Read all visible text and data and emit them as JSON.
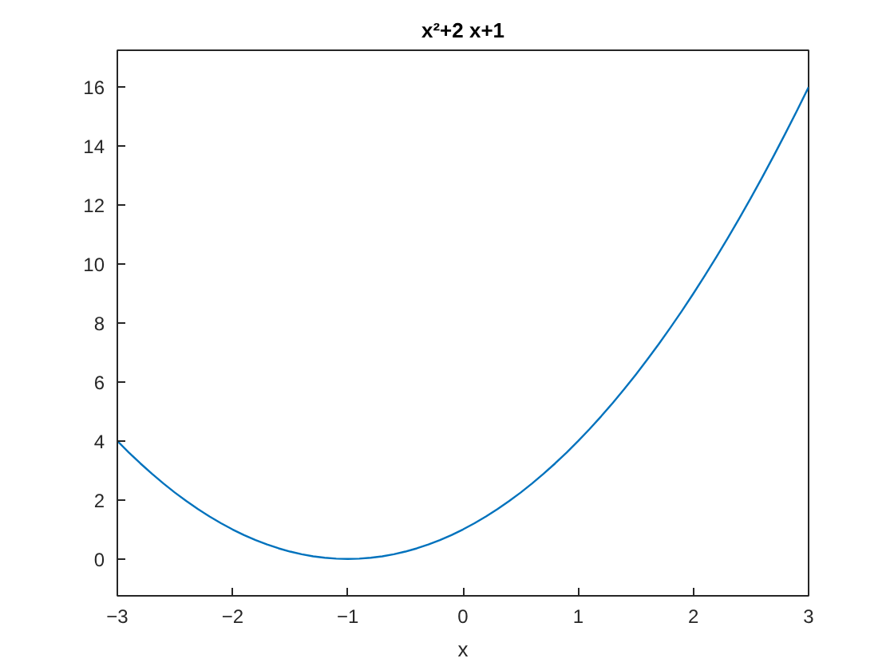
{
  "chart_data": {
    "type": "line",
    "title": "x²+2 x+1",
    "xlabel": "x",
    "x": [
      -3,
      -2.9,
      -2.8,
      -2.7,
      -2.6,
      -2.5,
      -2.4,
      -2.3,
      -2.2,
      -2.1,
      -2,
      -1.9,
      -1.8,
      -1.7,
      -1.6,
      -1.5,
      -1.4,
      -1.3,
      -1.2,
      -1.1,
      -1,
      -0.9,
      -0.8,
      -0.7,
      -0.6,
      -0.5,
      -0.4,
      -0.3,
      -0.2,
      -0.1,
      0,
      0.1,
      0.2,
      0.3,
      0.4,
      0.5,
      0.6,
      0.7,
      0.8,
      0.9,
      1,
      1.1,
      1.2,
      1.3,
      1.4,
      1.5,
      1.6,
      1.7,
      1.8,
      1.9,
      2,
      2.1,
      2.2,
      2.3,
      2.4,
      2.5,
      2.6,
      2.7,
      2.8,
      2.9,
      3
    ],
    "series": [
      {
        "color": "#0072bd",
        "values": [
          4,
          3.61,
          3.24,
          2.89,
          2.56,
          2.25,
          1.96,
          1.69,
          1.44,
          1.21,
          1,
          0.81,
          0.64,
          0.49,
          0.36,
          0.25,
          0.16,
          0.09,
          0.04,
          0.01,
          0,
          0.01,
          0.04,
          0.09,
          0.16,
          0.25,
          0.36,
          0.49,
          0.64,
          0.81,
          1,
          1.21,
          1.44,
          1.69,
          1.96,
          2.25,
          2.56,
          2.89,
          3.24,
          3.61,
          4,
          4.41,
          4.84,
          5.29,
          5.76,
          6.25,
          6.76,
          7.29,
          7.84,
          8.41,
          9,
          9.61,
          10.24,
          10.89,
          11.56,
          12.25,
          12.96,
          13.69,
          14.44,
          15.21,
          16
        ]
      }
    ],
    "xlim": [
      -3,
      3
    ],
    "ylim": [
      -1.25,
      17.25
    ],
    "xticks": [
      -3,
      -2,
      -1,
      0,
      1,
      2,
      3
    ],
    "yticks": [
      0,
      2,
      4,
      6,
      8,
      10,
      12,
      14,
      16
    ],
    "grid": false,
    "line_style": "solid"
  }
}
